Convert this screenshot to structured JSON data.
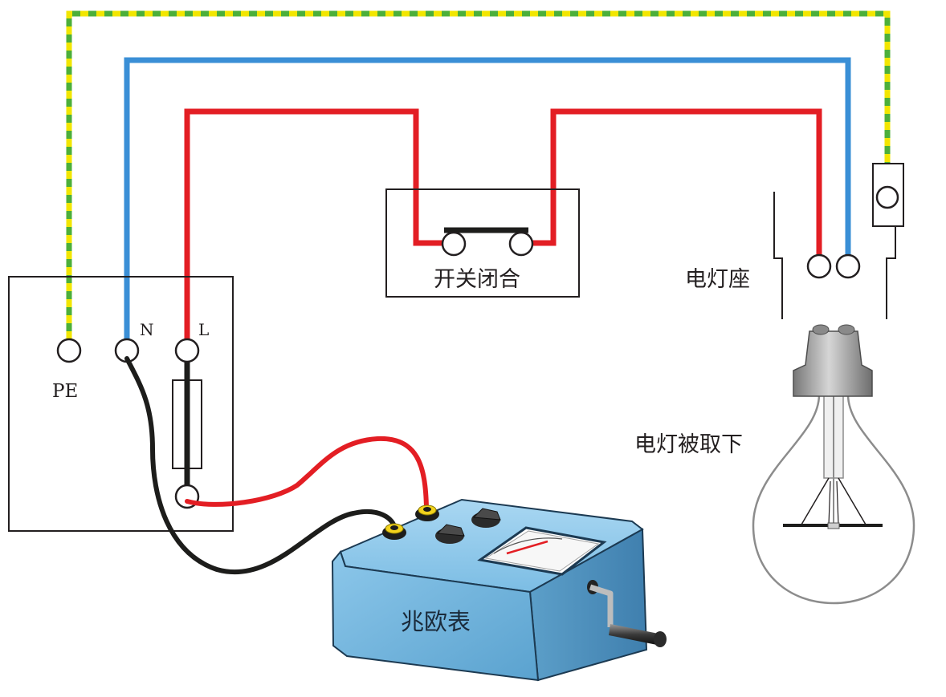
{
  "labels": {
    "pe": "PE",
    "n": "N",
    "l": "L",
    "switch": "开关闭合",
    "socket": "电灯座",
    "bulb": "电灯被取下",
    "meter": "兆欧表"
  },
  "colors": {
    "live": "#e31e24",
    "neutral": "#3a8fd6",
    "earth_green": "#4caf3a",
    "earth_yellow": "#f2e600",
    "lead_black": "#1d1d1b",
    "lead_red": "#e31e24",
    "meter_body": "#6fb3dc"
  }
}
